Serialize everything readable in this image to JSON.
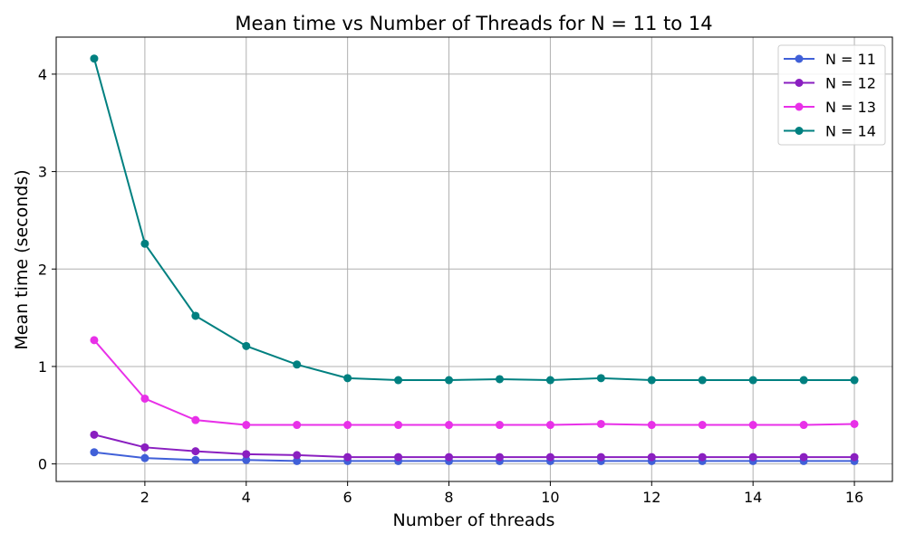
{
  "chart_data": {
    "type": "line",
    "title": "Mean time vs Number of Threads for N = 11 to 14",
    "xlabel": "Number of threads",
    "ylabel": "Mean time (seconds)",
    "xlim": [
      0.25,
      16.75
    ],
    "ylim": [
      -0.18,
      4.38
    ],
    "xticks": [
      2,
      4,
      6,
      8,
      10,
      12,
      14,
      16
    ],
    "yticks": [
      0,
      1,
      2,
      3,
      4
    ],
    "grid": true,
    "legend_position": "top-right",
    "x": [
      1,
      2,
      3,
      4,
      5,
      6,
      7,
      8,
      9,
      10,
      11,
      12,
      13,
      14,
      15,
      16
    ],
    "series": [
      {
        "name": "N = 11",
        "color": "#4060d8",
        "values": [
          0.12,
          0.06,
          0.04,
          0.04,
          0.03,
          0.03,
          0.03,
          0.03,
          0.03,
          0.03,
          0.03,
          0.03,
          0.03,
          0.03,
          0.03,
          0.03
        ]
      },
      {
        "name": "N = 12",
        "color": "#8a1fc0",
        "values": [
          0.3,
          0.17,
          0.13,
          0.1,
          0.09,
          0.07,
          0.07,
          0.07,
          0.07,
          0.07,
          0.07,
          0.07,
          0.07,
          0.07,
          0.07,
          0.07
        ]
      },
      {
        "name": "N = 13",
        "color": "#e830e8",
        "values": [
          1.27,
          0.67,
          0.45,
          0.4,
          0.4,
          0.4,
          0.4,
          0.4,
          0.4,
          0.4,
          0.41,
          0.4,
          0.4,
          0.4,
          0.4,
          0.41
        ]
      },
      {
        "name": "N = 14",
        "color": "#008080",
        "values": [
          4.16,
          2.26,
          1.52,
          1.21,
          1.02,
          0.88,
          0.86,
          0.86,
          0.87,
          0.86,
          0.88,
          0.86,
          0.86,
          0.86,
          0.86,
          0.86
        ]
      }
    ]
  }
}
